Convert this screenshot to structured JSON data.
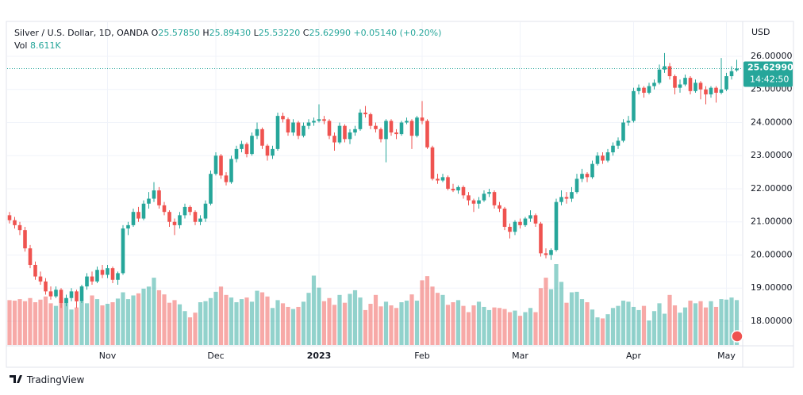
{
  "header": {
    "symbol": "Silver / U.S. Dollar, 1D, OANDA",
    "o_label": "O",
    "o": "25.57850",
    "h_label": "H",
    "h": "25.89430",
    "l_label": "L",
    "l": "25.53220",
    "c_label": "C",
    "c": "25.62990",
    "change": "+0.05140 (+0.20%)",
    "vol_label": "Vol",
    "vol": "8.611K"
  },
  "chart_data": {
    "type": "candlestick",
    "currency": "USD",
    "last_price_label": "25.62990",
    "countdown": "14:42:50",
    "up_color": "#26a69a",
    "down_color": "#ef5350",
    "grid": true,
    "ylim": [
      17.28,
      27.03
    ],
    "yticks": [
      {
        "value": 18,
        "label": "18.00000"
      },
      {
        "value": 19,
        "label": "19.00000"
      },
      {
        "value": 20,
        "label": "20.00000"
      },
      {
        "value": 21,
        "label": "21.00000"
      },
      {
        "value": 22,
        "label": "22.00000"
      },
      {
        "value": 23,
        "label": "23.00000"
      },
      {
        "value": 24,
        "label": "24.00000"
      },
      {
        "value": 25,
        "label": "25.00000"
      },
      {
        "value": 26,
        "label": "26.00000"
      }
    ],
    "categories": [
      null,
      null,
      null,
      null,
      null,
      null,
      null,
      null,
      null,
      null,
      null,
      null,
      null,
      null,
      null,
      null,
      null,
      null,
      null,
      "Nov",
      null,
      null,
      null,
      null,
      null,
      null,
      null,
      null,
      null,
      null,
      null,
      null,
      null,
      null,
      null,
      null,
      null,
      null,
      null,
      null,
      "Dec",
      null,
      null,
      null,
      null,
      null,
      null,
      null,
      null,
      null,
      null,
      null,
      null,
      null,
      null,
      null,
      null,
      null,
      null,
      null,
      "2023",
      null,
      null,
      null,
      null,
      null,
      null,
      null,
      null,
      null,
      null,
      null,
      null,
      null,
      null,
      null,
      null,
      null,
      null,
      null,
      "Feb",
      null,
      null,
      null,
      null,
      null,
      null,
      null,
      null,
      null,
      null,
      null,
      null,
      null,
      null,
      null,
      null,
      null,
      null,
      "Mar",
      null,
      null,
      null,
      null,
      null,
      null,
      null,
      null,
      null,
      null,
      null,
      null,
      null,
      null,
      null,
      null,
      null,
      null,
      null,
      null,
      null,
      "Apr",
      null,
      null,
      null,
      null,
      null,
      null,
      null,
      null,
      null,
      null,
      null,
      null,
      null,
      null,
      null,
      null,
      null,
      "May",
      null,
      null
    ],
    "ohlc": [
      [
        21.2,
        21.3,
        20.95,
        21.05
      ],
      [
        21.05,
        21.15,
        20.8,
        20.9
      ],
      [
        20.9,
        21.0,
        20.6,
        20.75
      ],
      [
        20.75,
        20.85,
        20.1,
        20.2
      ],
      [
        20.2,
        20.3,
        19.6,
        19.7
      ],
      [
        19.7,
        19.8,
        19.25,
        19.35
      ],
      [
        19.35,
        19.5,
        19.1,
        19.2
      ],
      [
        19.2,
        19.3,
        18.8,
        18.9
      ],
      [
        18.9,
        19.05,
        18.65,
        18.75
      ],
      [
        18.75,
        19.05,
        18.7,
        18.95
      ],
      [
        18.95,
        19.0,
        18.4,
        18.55
      ],
      [
        18.55,
        18.8,
        18.45,
        18.7
      ],
      [
        18.7,
        19.0,
        18.6,
        18.9
      ],
      [
        18.9,
        18.95,
        18.4,
        18.6
      ],
      [
        18.6,
        19.1,
        18.55,
        19.05
      ],
      [
        19.05,
        19.45,
        18.95,
        19.35
      ],
      [
        19.35,
        19.5,
        19.1,
        19.2
      ],
      [
        19.2,
        19.65,
        19.15,
        19.55
      ],
      [
        19.55,
        19.7,
        19.3,
        19.4
      ],
      [
        19.4,
        19.7,
        19.3,
        19.6
      ],
      [
        19.6,
        19.65,
        19.15,
        19.25
      ],
      [
        19.25,
        19.5,
        19.1,
        19.45
      ],
      [
        19.45,
        20.9,
        19.4,
        20.8
      ],
      [
        20.8,
        21.0,
        20.6,
        20.9
      ],
      [
        20.9,
        21.4,
        20.85,
        21.3
      ],
      [
        21.3,
        21.45,
        21.0,
        21.1
      ],
      [
        21.1,
        21.65,
        21.05,
        21.55
      ],
      [
        21.55,
        21.9,
        21.4,
        21.7
      ],
      [
        21.7,
        22.2,
        21.6,
        21.95
      ],
      [
        21.95,
        22.05,
        21.4,
        21.5
      ],
      [
        21.5,
        21.6,
        21.2,
        21.3
      ],
      [
        21.3,
        21.35,
        20.85,
        21.0
      ],
      [
        21.0,
        21.1,
        20.6,
        20.9
      ],
      [
        20.9,
        21.3,
        20.8,
        21.2
      ],
      [
        21.2,
        21.55,
        21.1,
        21.45
      ],
      [
        21.45,
        21.5,
        21.2,
        21.3
      ],
      [
        21.3,
        21.35,
        20.9,
        21.0
      ],
      [
        21.0,
        21.2,
        20.9,
        21.1
      ],
      [
        21.1,
        21.65,
        21.0,
        21.55
      ],
      [
        21.55,
        22.55,
        21.5,
        22.45
      ],
      [
        22.45,
        23.1,
        22.4,
        23.0
      ],
      [
        23.0,
        23.05,
        22.3,
        22.4
      ],
      [
        22.4,
        22.5,
        22.1,
        22.2
      ],
      [
        22.2,
        23.0,
        22.15,
        22.9
      ],
      [
        22.9,
        23.3,
        22.8,
        23.2
      ],
      [
        23.2,
        23.45,
        23.1,
        23.35
      ],
      [
        23.35,
        23.4,
        22.95,
        23.05
      ],
      [
        23.05,
        23.7,
        23.0,
        23.6
      ],
      [
        23.6,
        24.0,
        23.5,
        23.8
      ],
      [
        23.8,
        23.85,
        23.2,
        23.3
      ],
      [
        23.3,
        23.35,
        22.85,
        23.0
      ],
      [
        23.0,
        23.3,
        22.9,
        23.2
      ],
      [
        23.2,
        24.3,
        23.15,
        24.2
      ],
      [
        24.2,
        24.3,
        24.0,
        24.1
      ],
      [
        24.1,
        24.15,
        23.6,
        23.7
      ],
      [
        23.7,
        24.1,
        23.6,
        24.0
      ],
      [
        24.0,
        24.05,
        23.5,
        23.6
      ],
      [
        23.6,
        24.0,
        23.55,
        23.9
      ],
      [
        23.9,
        24.1,
        23.8,
        24.0
      ],
      [
        24.0,
        24.15,
        23.9,
        24.05
      ],
      [
        24.05,
        24.55,
        24.0,
        24.1
      ],
      [
        24.1,
        24.2,
        23.95,
        24.05
      ],
      [
        24.05,
        24.1,
        23.5,
        23.6
      ],
      [
        23.6,
        23.7,
        23.15,
        23.4
      ],
      [
        23.4,
        24.0,
        23.35,
        23.9
      ],
      [
        23.9,
        23.95,
        23.4,
        23.5
      ],
      [
        23.5,
        23.8,
        23.35,
        23.7
      ],
      [
        23.7,
        23.9,
        23.6,
        23.8
      ],
      [
        23.8,
        24.4,
        23.75,
        24.3
      ],
      [
        24.3,
        24.5,
        24.15,
        24.25
      ],
      [
        24.25,
        24.3,
        23.8,
        23.9
      ],
      [
        23.9,
        24.0,
        23.7,
        23.8
      ],
      [
        23.8,
        23.85,
        23.4,
        23.5
      ],
      [
        23.5,
        24.1,
        22.8,
        24.05
      ],
      [
        24.05,
        24.1,
        23.6,
        23.7
      ],
      [
        23.7,
        23.8,
        23.5,
        23.65
      ],
      [
        23.65,
        24.05,
        23.6,
        24.0
      ],
      [
        24.0,
        24.15,
        23.95,
        24.05
      ],
      [
        24.05,
        24.1,
        23.2,
        23.6
      ],
      [
        23.6,
        24.2,
        23.55,
        24.15
      ],
      [
        24.15,
        24.65,
        23.95,
        24.05
      ],
      [
        24.05,
        24.1,
        23.2,
        23.25
      ],
      [
        23.25,
        23.3,
        22.25,
        22.3
      ],
      [
        22.3,
        22.45,
        22.15,
        22.25
      ],
      [
        22.25,
        22.45,
        22.2,
        22.35
      ],
      [
        22.35,
        22.4,
        21.95,
        22.0
      ],
      [
        22.0,
        22.15,
        21.9,
        21.95
      ],
      [
        21.95,
        22.1,
        21.85,
        22.05
      ],
      [
        22.05,
        22.1,
        21.7,
        21.8
      ],
      [
        21.8,
        21.9,
        21.5,
        21.65
      ],
      [
        21.65,
        21.7,
        21.3,
        21.55
      ],
      [
        21.55,
        21.75,
        21.4,
        21.65
      ],
      [
        21.65,
        21.95,
        21.6,
        21.85
      ],
      [
        21.85,
        22.0,
        21.75,
        21.9
      ],
      [
        21.9,
        21.95,
        21.4,
        21.5
      ],
      [
        21.5,
        21.6,
        21.3,
        21.4
      ],
      [
        21.4,
        21.45,
        20.75,
        20.85
      ],
      [
        20.85,
        20.95,
        20.5,
        20.7
      ],
      [
        20.7,
        21.05,
        20.6,
        21.0
      ],
      [
        21.0,
        21.1,
        20.8,
        20.9
      ],
      [
        20.9,
        21.15,
        20.85,
        21.1
      ],
      [
        21.1,
        21.35,
        21.0,
        21.2
      ],
      [
        21.2,
        21.25,
        20.85,
        20.95
      ],
      [
        20.95,
        21.0,
        19.95,
        20.05
      ],
      [
        20.05,
        20.2,
        19.9,
        20.0
      ],
      [
        20.0,
        20.2,
        19.85,
        20.15
      ],
      [
        20.15,
        21.7,
        20.1,
        21.6
      ],
      [
        21.6,
        21.95,
        21.5,
        21.75
      ],
      [
        21.75,
        21.9,
        21.55,
        21.7
      ],
      [
        21.7,
        22.05,
        21.6,
        21.9
      ],
      [
        21.9,
        22.45,
        21.85,
        22.3
      ],
      [
        22.3,
        22.6,
        22.2,
        22.45
      ],
      [
        22.45,
        22.5,
        22.2,
        22.35
      ],
      [
        22.35,
        22.85,
        22.3,
        22.75
      ],
      [
        22.75,
        23.1,
        22.7,
        23.0
      ],
      [
        23.0,
        23.1,
        22.75,
        22.85
      ],
      [
        22.85,
        23.2,
        22.8,
        23.1
      ],
      [
        23.1,
        23.4,
        23.0,
        23.3
      ],
      [
        23.3,
        23.55,
        23.2,
        23.45
      ],
      [
        23.45,
        24.1,
        23.4,
        24.0
      ],
      [
        24.0,
        24.2,
        23.9,
        24.05
      ],
      [
        24.05,
        25.05,
        24.0,
        24.95
      ],
      [
        24.95,
        25.15,
        24.85,
        25.05
      ],
      [
        25.05,
        25.1,
        24.75,
        24.9
      ],
      [
        24.9,
        25.2,
        24.85,
        25.1
      ],
      [
        25.1,
        25.3,
        25.0,
        25.2
      ],
      [
        25.2,
        25.75,
        25.15,
        25.6
      ],
      [
        25.6,
        26.1,
        25.5,
        25.7
      ],
      [
        25.7,
        25.8,
        25.3,
        25.4
      ],
      [
        25.4,
        25.45,
        24.85,
        25.05
      ],
      [
        25.05,
        25.3,
        24.9,
        25.15
      ],
      [
        25.15,
        25.45,
        25.1,
        25.35
      ],
      [
        25.35,
        25.4,
        24.85,
        24.95
      ],
      [
        24.95,
        25.3,
        24.9,
        25.2
      ],
      [
        25.2,
        25.25,
        24.7,
        25.0
      ],
      [
        25.0,
        25.1,
        24.55,
        24.85
      ],
      [
        24.85,
        25.1,
        24.75,
        25.05
      ],
      [
        25.05,
        25.1,
        24.6,
        24.9
      ],
      [
        24.9,
        25.95,
        24.85,
        25.0
      ],
      [
        25.0,
        25.5,
        24.95,
        25.4
      ],
      [
        25.4,
        25.7,
        25.3,
        25.55
      ],
      [
        25.5785,
        25.8943,
        25.5322,
        25.6299
      ]
    ],
    "volume": [
      8.6,
      8.5,
      8.8,
      8.4,
      9.0,
      8.2,
      8.7,
      9.3,
      8.0,
      7.5,
      9.1,
      8.9,
      6.8,
      7.2,
      8.3,
      8.0,
      9.5,
      8.8,
      7.6,
      7.9,
      8.2,
      8.9,
      10.1,
      8.8,
      9.5,
      9.9,
      10.8,
      11.2,
      12.9,
      10.5,
      9.7,
      8.1,
      8.6,
      7.8,
      6.5,
      5.3,
      6.2,
      8.2,
      8.4,
      9.0,
      10.2,
      11.2,
      9.6,
      9.1,
      8.2,
      8.8,
      9.1,
      8.3,
      10.4,
      10.1,
      9.3,
      7.1,
      8.6,
      8.0,
      7.3,
      6.9,
      7.3,
      8.3,
      10.0,
      13.3,
      11.0,
      8.4,
      9.0,
      7.7,
      9.6,
      8.1,
      9.8,
      10.5,
      9.1,
      6.7,
      7.9,
      9.6,
      7.4,
      8.3,
      7.6,
      7.1,
      8.2,
      8.5,
      9.7,
      8.5,
      12.4,
      13.2,
      11.2,
      10.0,
      9.6,
      7.7,
      8.2,
      8.6,
      7.5,
      6.3,
      7.6,
      8.3,
      7.3,
      6.7,
      7.2,
      7.1,
      6.9,
      6.3,
      6.6,
      5.6,
      6.3,
      7.1,
      6.3,
      10.9,
      12.9,
      10.7,
      15.5,
      12.1,
      8.1,
      10.1,
      10.2,
      8.8,
      8.2,
      6.8,
      5.3,
      5.1,
      5.9,
      7.1,
      7.5,
      8.5,
      8.3,
      7.3,
      6.7,
      7.5,
      4.7,
      6.5,
      8.0,
      6.0,
      9.6,
      7.6,
      6.2,
      7.2,
      8.5,
      8.0,
      8.4,
      7.2,
      8.4,
      7.3,
      8.8,
      8.7,
      9.1,
      8.611
    ]
  },
  "footer": {
    "brand": "TradingView"
  }
}
